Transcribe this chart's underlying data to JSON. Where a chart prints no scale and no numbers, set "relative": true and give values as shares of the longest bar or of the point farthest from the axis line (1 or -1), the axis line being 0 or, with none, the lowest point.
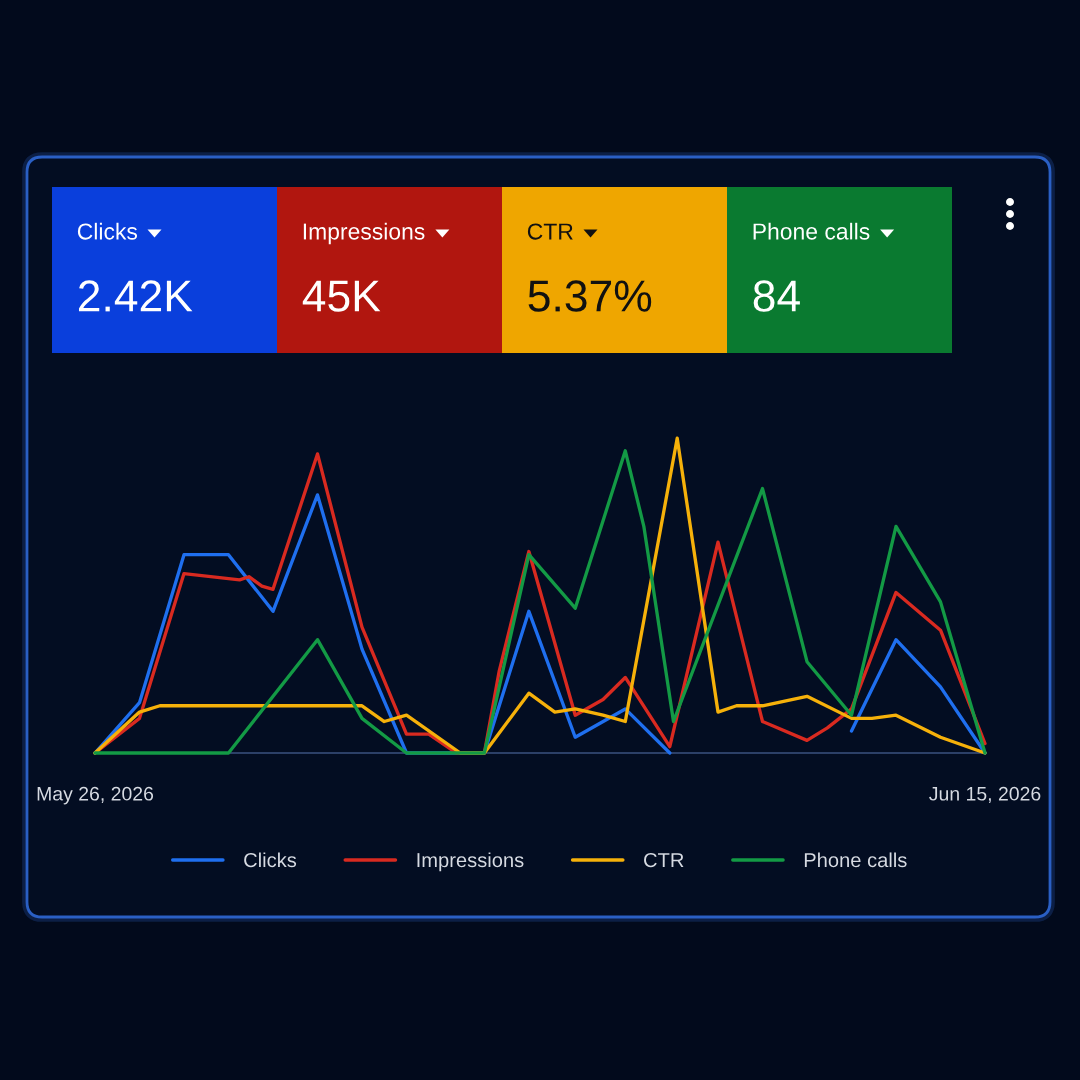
{
  "chart_data": [
    {
      "type": "other",
      "categories": [
        "Clicks",
        "Impressions",
        "CTR",
        "Phone calls"
      ],
      "value_labels": [
        "2.42K",
        "45K",
        "5.37%",
        "84"
      ],
      "colors": [
        "#0a3fdc",
        "#b1160f",
        "#efa600",
        "#0a7a30"
      ]
    },
    {
      "type": "line",
      "relative": true,
      "xlim": [
        "2026-05-26",
        "2026-06-15"
      ],
      "xticks": [
        {
          "value": "2026-05-26",
          "label": "May 26, 2026"
        },
        {
          "value": "2026-06-15",
          "label": "Jun 15, 2026"
        }
      ],
      "tick_labels": "x",
      "legend": "bottom",
      "series": [
        {
          "name": "Clicks",
          "color": "#1f6fef",
          "x": [
            "2026-05-26",
            "2026-05-27",
            "2026-05-28",
            "2026-05-29",
            "2026-05-30",
            "2026-05-31",
            "2026-06-01",
            "2026-06-02",
            "2026-06-03T18:00",
            "2026-06-04T18:00",
            "2026-06-05T19:00",
            "2026-06-06T22:00",
            "2026-06-07T22:00",
            "2026-06-10",
            "2026-06-12",
            "2026-06-13",
            "2026-06-14",
            "2026-06-15"
          ],
          "values": [
            0,
            0.16,
            0.63,
            0.63,
            0.45,
            0.82,
            0.33,
            0,
            0,
            0.45,
            0.05,
            0.14,
            0,
            null,
            0.07,
            0.36,
            0.21,
            0
          ]
        },
        {
          "name": "Impressions",
          "color": "#d92a20",
          "x": [
            "2026-05-26",
            "2026-05-27",
            "2026-05-28",
            "2026-05-29T06:00",
            "2026-05-29T11:00",
            "2026-05-29T18:00",
            "2026-05-30",
            "2026-05-31",
            "2026-06-01",
            "2026-06-02",
            "2026-06-02T12:00",
            "2026-06-03T03:00",
            "2026-06-03T18:00",
            "2026-06-04T02:00",
            "2026-06-04T18:00",
            "2026-06-05T19:00",
            "2026-06-06T10:00",
            "2026-06-06T22:00",
            "2026-06-07T22:00",
            "2026-06-09",
            "2026-06-10",
            "2026-06-11",
            "2026-06-11T11:00",
            "2026-06-12",
            "2026-06-13",
            "2026-06-14",
            "2026-06-15"
          ],
          "values": [
            0,
            0.11,
            0.57,
            0.55,
            0.56,
            0.53,
            0.52,
            0.95,
            0.4,
            0.06,
            0.06,
            0,
            0,
            0.26,
            0.64,
            0.12,
            0.17,
            0.24,
            0.02,
            0.67,
            0.1,
            0.04,
            0.08,
            0.14,
            0.51,
            0.39,
            0.03
          ]
        },
        {
          "name": "CTR",
          "color": "#f6b10a",
          "x": [
            "2026-05-26",
            "2026-05-27",
            "2026-05-27T11:00",
            "2026-05-31T12:00",
            "2026-06-01",
            "2026-06-01T12:00",
            "2026-06-02",
            "2026-06-03T05:00",
            "2026-06-03T18:00",
            "2026-06-04T18:00",
            "2026-06-05T08:00",
            "2026-06-05T19:00",
            "2026-06-06T10:00",
            "2026-06-06T22:00",
            "2026-06-08T02:00",
            "2026-06-09",
            "2026-06-09T10:00",
            "2026-06-10",
            "2026-06-11",
            "2026-06-12",
            "2026-06-12T11:00",
            "2026-06-13",
            "2026-06-14",
            "2026-06-15"
          ],
          "values": [
            0,
            0.13,
            0.15,
            0.15,
            0.15,
            0.1,
            0.12,
            0,
            0,
            0.19,
            0.13,
            0.14,
            0.12,
            0.1,
            1,
            0.13,
            0.15,
            0.15,
            0.18,
            0.11,
            0.11,
            0.12,
            0.05,
            0
          ]
        },
        {
          "name": "Phone calls",
          "color": "#139a45",
          "x": [
            "2026-05-26",
            "2026-05-29",
            "2026-05-31",
            "2026-06-01",
            "2026-06-02",
            "2026-06-03T18:00",
            "2026-06-04T18:00",
            "2026-06-05T19:00",
            "2026-06-06T22:00",
            "2026-06-07T08:00",
            "2026-06-08",
            "2026-06-10",
            "2026-06-11",
            "2026-06-12",
            "2026-06-13",
            "2026-06-14",
            "2026-06-15"
          ],
          "values": [
            0,
            0,
            0.36,
            0.11,
            0,
            0,
            0.63,
            0.46,
            0.96,
            0.72,
            0.1,
            0.84,
            0.29,
            0.12,
            0.72,
            0.48,
            0
          ]
        }
      ]
    }
  ]
}
